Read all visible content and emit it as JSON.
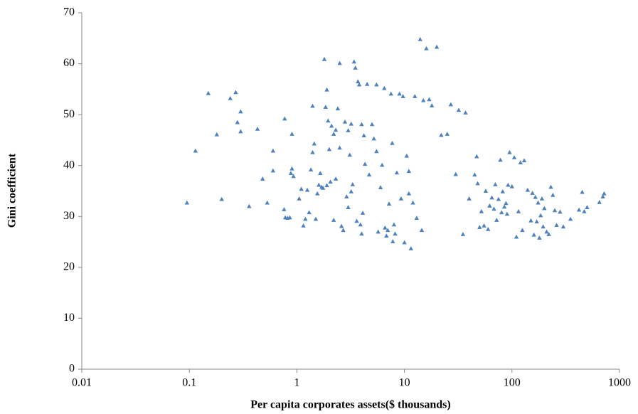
{
  "chart_data": {
    "type": "scatter",
    "xlabel": "Per capita corporates assets($ thousands)",
    "ylabel": "Gini coefficient",
    "x": [
      0.095,
      0.114,
      0.15,
      0.18,
      0.2,
      0.24,
      0.27,
      0.28,
      0.3,
      0.3,
      0.36,
      0.43,
      0.48,
      0.53,
      0.6,
      0.6,
      0.76,
      0.77,
      0.78,
      0.82,
      0.86,
      0.9,
      0.88,
      0.9,
      0.93,
      1.05,
      1.1,
      1.15,
      1.2,
      1.25,
      1.3,
      1.35,
      1.4,
      1.4,
      1.45,
      1.5,
      1.55,
      1.6,
      1.65,
      1.7,
      1.75,
      1.8,
      1.85,
      1.9,
      1.95,
      2.0,
      2.05,
      2.1,
      2.2,
      2.2,
      2.3,
      2.4,
      2.5,
      2.5,
      2.6,
      2.7,
      2.8,
      2.9,
      3.0,
      3.0,
      3.1,
      3.2,
      3.3,
      3.4,
      3.5,
      3.6,
      3.7,
      3.8,
      3.9,
      4.0,
      4.0,
      4.1,
      4.2,
      4.3,
      4.5,
      4.7,
      5.0,
      5.2,
      5.5,
      5.7,
      6.0,
      6.2,
      6.5,
      6.8,
      7.0,
      7.2,
      7.5,
      7.8,
      8.0,
      8.5,
      9.0,
      9.3,
      9.7,
      10,
      10.5,
      11,
      11.5,
      12,
      12.5,
      13,
      14,
      14.5,
      15,
      16,
      17,
      18,
      20,
      22,
      25,
      27,
      30,
      32,
      35,
      37,
      40,
      45,
      47,
      48,
      50,
      52,
      55,
      57,
      60,
      62,
      65,
      68,
      70,
      72,
      75,
      78,
      80,
      82,
      85,
      88,
      90,
      92,
      95,
      100,
      105,
      110,
      115,
      120,
      125,
      130,
      140,
      150,
      155,
      160,
      165,
      170,
      175,
      180,
      185,
      190,
      195,
      200,
      210,
      220,
      230,
      240,
      250,
      260,
      280,
      300,
      350,
      420,
      450,
      470,
      500,
      650,
      700,
      720,
      8.2,
      6.6,
      3.2,
      1.9,
      2.3,
      5.5,
      11,
      7.7
    ],
    "values": [
      32.7,
      42.9,
      54.2,
      46.1,
      33.4,
      53.2,
      54.4,
      48.5,
      50.6,
      46.7,
      32,
      47.2,
      37.4,
      32.7,
      39,
      42.9,
      31.4,
      49.2,
      29.8,
      29.7,
      29.8,
      46.2,
      38.5,
      39.4,
      37.9,
      33.5,
      35.4,
      28.2,
      29.5,
      35.2,
      30.8,
      39.2,
      51.7,
      42.6,
      44.3,
      29.5,
      34.5,
      36.2,
      38.5,
      35.8,
      35.6,
      60.9,
      51.5,
      54.9,
      48.8,
      43.2,
      36.8,
      47.8,
      46.2,
      29.3,
      37.4,
      51.2,
      60.1,
      43.5,
      28.1,
      27.3,
      48.6,
      33.9,
      46.9,
      31.8,
      42.1,
      48.2,
      36.3,
      60.4,
      59.2,
      29.1,
      56.5,
      55.9,
      28.4,
      48.1,
      26.6,
      30.7,
      45.9,
      40.3,
      56.0,
      38.2,
      48.1,
      45.3,
      55.9,
      27.0,
      35.7,
      40.1,
      55.2,
      26.2,
      27.3,
      32.5,
      54.1,
      25.1,
      28.4,
      38.6,
      54.1,
      33.5,
      53.6,
      24.9,
      41.9,
      38.9,
      23.7,
      32.7,
      53.6,
      29.7,
      64.8,
      27.3,
      52.8,
      63.0,
      53.0,
      51.8,
      63.3,
      46.0,
      46.2,
      52.0,
      38.3,
      50.9,
      26.5,
      50.4,
      33.5,
      38.2,
      41.8,
      36.5,
      27.9,
      31.0,
      28.2,
      35.0,
      27.5,
      32.1,
      33.7,
      31.5,
      36.3,
      29.3,
      33.4,
      41.1,
      30.8,
      34.9,
      31.9,
      32.6,
      30.5,
      36.2,
      42.6,
      35.9,
      41.6,
      26.0,
      31.0,
      40.6,
      27.3,
      41.0,
      35.2,
      29.2,
      34.6,
      26.4,
      33.8,
      29.0,
      32.7,
      25.8,
      30.2,
      33.5,
      28.0,
      31.6,
      27.0,
      26.5,
      35.8,
      34.2,
      31.2,
      28.3,
      30.9,
      28.0,
      29.5,
      31.3,
      34.8,
      31.0,
      31.8,
      32.8,
      33.9,
      34.5,
      26.6,
      27.8,
      34.9,
      36.1,
      47.0,
      42.8,
      34.5,
      44.4
    ],
    "color": "#4f81bd",
    "marker": "triangle",
    "xscale": "log",
    "xlim": [
      0.01,
      1000
    ],
    "xticks": [
      0.01,
      0.1,
      1,
      10,
      100,
      1000
    ],
    "ylim": [
      0,
      70
    ],
    "yticks": [
      0,
      10,
      20,
      30,
      40,
      50,
      60,
      70
    ],
    "grid": false
  }
}
